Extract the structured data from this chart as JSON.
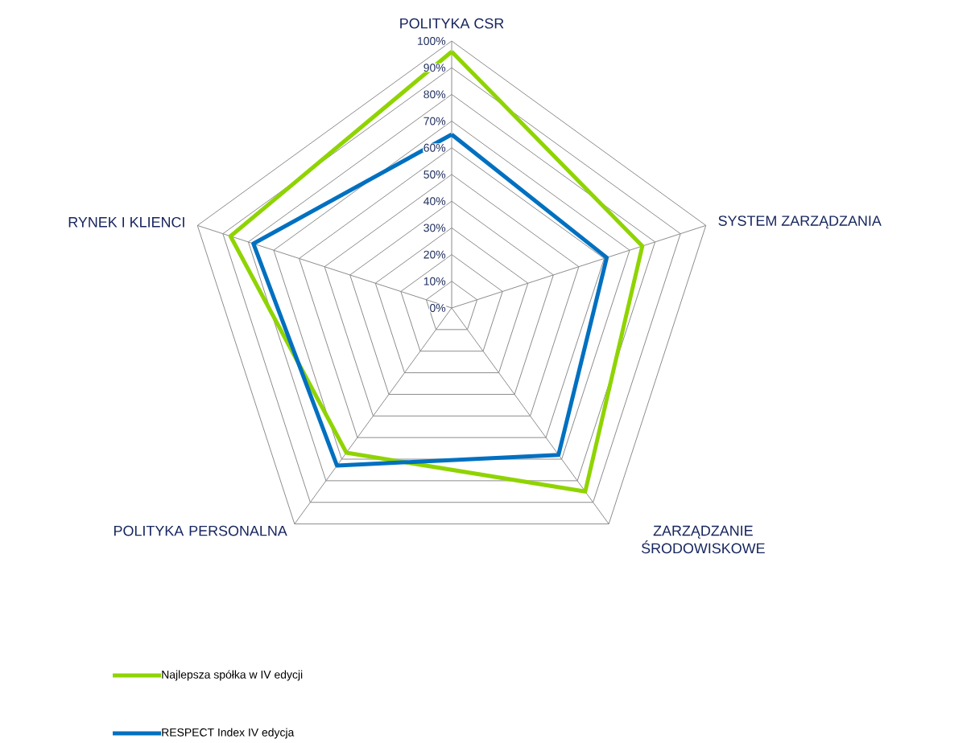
{
  "chart_data": {
    "type": "radar",
    "categories": [
      "POLITYKA CSR",
      "SYSTEM ZARZĄDZANIA",
      "ZARZĄDZANIE ŚRODOWISKOWE",
      "POLITYKA PERSONALNA",
      "RYNEK I KLIENCI"
    ],
    "series": [
      {
        "name": "Najlepsza spółka w IV edycji",
        "color": "#8fd400",
        "values": [
          96,
          75,
          85,
          67,
          87
        ]
      },
      {
        "name": "RESPECT Index IV edycja",
        "color": "#0070c0",
        "values": [
          65,
          61,
          68,
          73,
          78
        ]
      }
    ],
    "ylim": [
      0,
      100
    ],
    "yticks": [
      {
        "value": 0,
        "label": "0%"
      },
      {
        "value": 10,
        "label": "10%"
      },
      {
        "value": 20,
        "label": "20%"
      },
      {
        "value": 30,
        "label": "30%"
      },
      {
        "value": 40,
        "label": "40%"
      },
      {
        "value": 50,
        "label": "50%"
      },
      {
        "value": 60,
        "label": "60%"
      },
      {
        "value": 70,
        "label": "70%"
      },
      {
        "value": 80,
        "label": "80%"
      },
      {
        "value": 90,
        "label": "90%"
      },
      {
        "value": 100,
        "label": "100%"
      }
    ],
    "grid": true,
    "legend": "bottom",
    "marker": "none",
    "line_style": "solid"
  }
}
